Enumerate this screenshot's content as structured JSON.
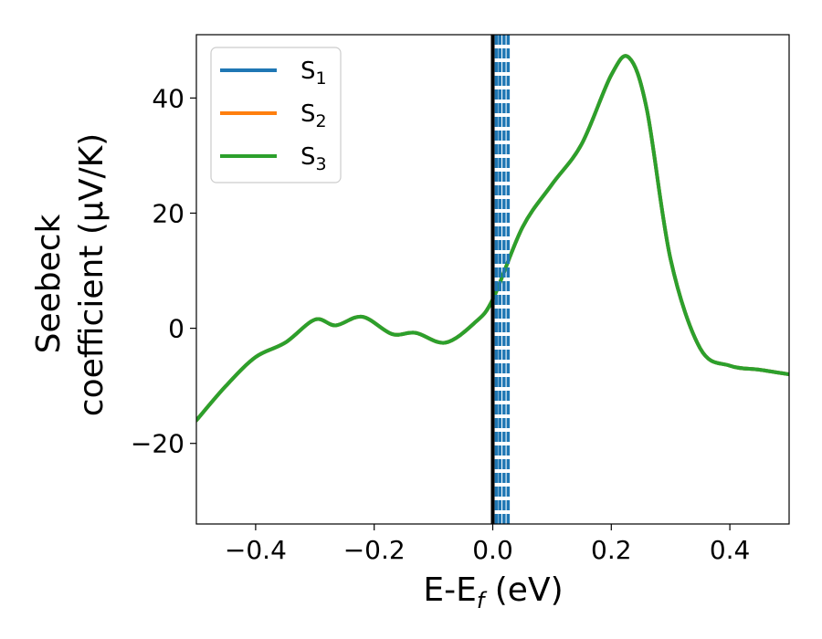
{
  "chart_data": {
    "type": "line",
    "title": "",
    "xlabel_main": "E-E",
    "xlabel_sub": "f",
    "xlabel_unit": " (eV)",
    "ylabel_line1": "Seebeck",
    "ylabel_line2": "coefficient  (μV/K)",
    "xlim": [
      -0.5,
      0.5
    ],
    "ylim": [
      -34,
      51
    ],
    "xticks": [
      -0.4,
      -0.2,
      0.0,
      0.2,
      0.4
    ],
    "xtick_labels": [
      "−0.4",
      "−0.2",
      "0.0",
      "0.2",
      "0.4"
    ],
    "yticks": [
      -20,
      0,
      20,
      40
    ],
    "ytick_labels": [
      "−20",
      "0",
      "20",
      "40"
    ],
    "grid": false,
    "legend_position": "top-left",
    "series": [
      {
        "name": "S",
        "sub": "1",
        "color": "#1f77b4",
        "x": [
          -0.5,
          -0.45,
          -0.4,
          -0.35,
          -0.3,
          -0.265,
          -0.22,
          -0.17,
          -0.13,
          -0.08,
          -0.03,
          0.0,
          0.05,
          0.1,
          0.15,
          0.2,
          0.23,
          0.26,
          0.3,
          0.35,
          0.4,
          0.45,
          0.5
        ],
        "y": [
          -16.0,
          -10.0,
          -5.0,
          -2.5,
          1.5,
          0.5,
          2.0,
          -1.0,
          -0.8,
          -2.5,
          1.0,
          5.0,
          17.5,
          25.0,
          32.0,
          44.0,
          47.0,
          38.0,
          12.0,
          -3.5,
          -6.5,
          -7.2,
          -8.0
        ]
      },
      {
        "name": "S",
        "sub": "2",
        "color": "#ff7f0e",
        "x": [
          -0.5,
          -0.45,
          -0.4,
          -0.35,
          -0.3,
          -0.265,
          -0.22,
          -0.17,
          -0.13,
          -0.08,
          -0.03,
          0.0,
          0.05,
          0.1,
          0.15,
          0.2,
          0.23,
          0.26,
          0.3,
          0.35,
          0.4,
          0.45,
          0.5
        ],
        "y": [
          -16.0,
          -10.0,
          -5.0,
          -2.5,
          1.5,
          0.5,
          2.0,
          -1.0,
          -0.8,
          -2.5,
          1.0,
          5.0,
          17.5,
          25.0,
          32.0,
          44.0,
          47.0,
          38.0,
          12.0,
          -3.5,
          -6.5,
          -7.2,
          -8.0
        ]
      },
      {
        "name": "S",
        "sub": "3",
        "color": "#2ca02c",
        "x": [
          -0.5,
          -0.45,
          -0.4,
          -0.35,
          -0.3,
          -0.265,
          -0.22,
          -0.17,
          -0.13,
          -0.08,
          -0.03,
          0.0,
          0.05,
          0.1,
          0.15,
          0.2,
          0.23,
          0.26,
          0.3,
          0.35,
          0.4,
          0.45,
          0.5
        ],
        "y": [
          -16.0,
          -10.0,
          -5.0,
          -2.5,
          1.5,
          0.5,
          2.0,
          -1.0,
          -0.8,
          -2.5,
          1.0,
          5.0,
          17.5,
          25.0,
          32.0,
          44.0,
          47.0,
          38.0,
          12.0,
          -3.5,
          -6.5,
          -7.2,
          -8.0
        ]
      }
    ],
    "vlines": [
      {
        "x": 0.0,
        "color": "#000000",
        "style": "solid"
      },
      {
        "x": 0.006,
        "color": "#1f77b4",
        "style": "dashed"
      },
      {
        "x": 0.012,
        "color": "#1f77b4",
        "style": "dashed"
      },
      {
        "x": 0.019,
        "color": "#1f77b4",
        "style": "dashed"
      },
      {
        "x": 0.026,
        "color": "#1f77b4",
        "style": "dashed"
      }
    ]
  }
}
